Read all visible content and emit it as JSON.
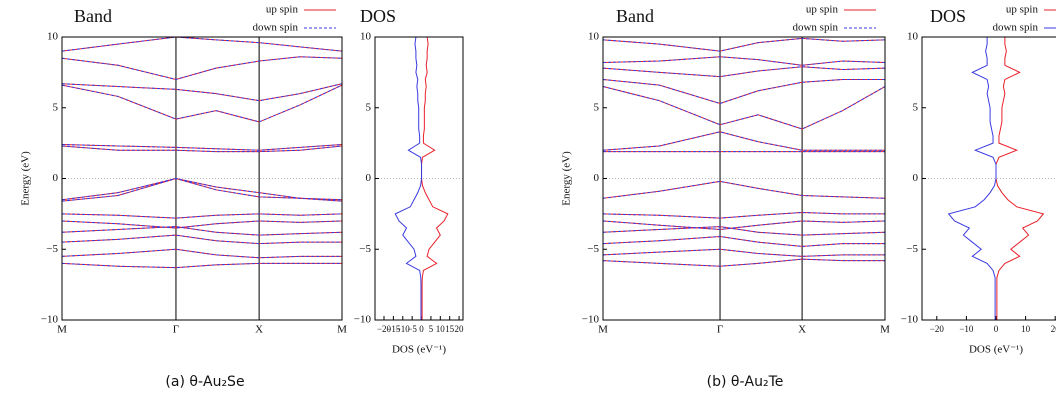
{
  "chart_data": [
    {
      "type": "band",
      "title": "Band",
      "ylabel": "Energy (eV)",
      "legend": true,
      "x": [
        0,
        0.2,
        0.407,
        0.55,
        0.704,
        0.85,
        1
      ],
      "xlim": [
        0,
        1
      ],
      "xticks": [
        {
          "value": 0,
          "label": "M"
        },
        {
          "value": 0.407,
          "label": "Γ"
        },
        {
          "value": 0.704,
          "label": "X"
        },
        {
          "value": 1,
          "label": "M"
        }
      ],
      "ylim": [
        -10,
        10
      ],
      "yticks": [
        {
          "value": -10,
          "label": "−10"
        },
        {
          "value": -5,
          "label": "−5"
        },
        0,
        5,
        10
      ],
      "series": [
        {
          "name": "up spin",
          "color": "#e8202a",
          "dashed": false,
          "lines": [
            [
              9.0,
              9.5,
              10,
              9.8,
              9.6,
              9.3,
              9.0
            ],
            [
              8.5,
              8.0,
              7.0,
              7.8,
              8.3,
              8.6,
              8.5
            ],
            [
              6.7,
              6.5,
              6.3,
              6.0,
              5.5,
              6.0,
              6.7
            ],
            [
              6.6,
              5.8,
              4.2,
              4.8,
              4.0,
              5.2,
              6.6
            ],
            [
              2.4,
              2.3,
              2.2,
              2.1,
              2.0,
              2.2,
              2.4
            ],
            [
              2.3,
              2.0,
              2.0,
              1.9,
              1.9,
              2.0,
              2.3
            ],
            [
              -1.5,
              -1.0,
              0,
              -0.8,
              -1.3,
              -1.4,
              -1.5
            ],
            [
              -1.6,
              -1.2,
              0,
              -0.6,
              -1.0,
              -1.4,
              -1.6
            ],
            [
              -2.5,
              -2.6,
              -2.8,
              -2.6,
              -2.5,
              -2.6,
              -2.5
            ],
            [
              -3.0,
              -3.2,
              -3.5,
              -3.2,
              -3.0,
              -3.1,
              -3.0
            ],
            [
              -3.8,
              -3.6,
              -3.4,
              -3.8,
              -4.0,
              -3.9,
              -3.8
            ],
            [
              -4.5,
              -4.3,
              -4.0,
              -4.4,
              -4.6,
              -4.5,
              -4.5
            ],
            [
              -5.5,
              -5.3,
              -5.0,
              -5.4,
              -5.6,
              -5.5,
              -5.5
            ],
            [
              -6.0,
              -6.2,
              -6.3,
              -6.1,
              -6.0,
              -6.0,
              -6.0
            ]
          ]
        },
        {
          "name": "down spin",
          "color": "#3a3ae0",
          "dashed": true,
          "lines": [
            [
              9.0,
              9.5,
              10,
              9.8,
              9.6,
              9.3,
              9.0
            ],
            [
              8.5,
              8.0,
              7.0,
              7.8,
              8.3,
              8.6,
              8.5
            ],
            [
              6.7,
              6.5,
              6.3,
              6.0,
              5.5,
              6.0,
              6.7
            ],
            [
              6.6,
              5.8,
              4.2,
              4.8,
              4.0,
              5.2,
              6.6
            ],
            [
              2.4,
              2.3,
              2.2,
              2.1,
              2.0,
              2.2,
              2.4
            ],
            [
              2.3,
              2.0,
              2.0,
              1.9,
              1.9,
              2.0,
              2.3
            ],
            [
              -1.5,
              -1.0,
              0,
              -0.8,
              -1.3,
              -1.4,
              -1.5
            ],
            [
              -1.6,
              -1.2,
              0,
              -0.6,
              -1.0,
              -1.4,
              -1.6
            ],
            [
              -2.5,
              -2.6,
              -2.8,
              -2.6,
              -2.5,
              -2.6,
              -2.5
            ],
            [
              -3.0,
              -3.2,
              -3.5,
              -3.2,
              -3.0,
              -3.1,
              -3.0
            ],
            [
              -3.8,
              -3.6,
              -3.4,
              -3.8,
              -4.0,
              -3.9,
              -3.8
            ],
            [
              -4.5,
              -4.3,
              -4.0,
              -4.4,
              -4.6,
              -4.5,
              -4.5
            ],
            [
              -5.5,
              -5.3,
              -5.0,
              -5.4,
              -5.6,
              -5.5,
              -5.5
            ],
            [
              -6.0,
              -6.2,
              -6.3,
              -6.1,
              -6.0,
              -6.0,
              -6.0
            ]
          ]
        }
      ]
    },
    {
      "type": "dos",
      "title": "DOS",
      "xlabel": "DOS (eV⁻¹)",
      "legend": false,
      "energies": [
        -10,
        -9.5,
        -9,
        -8.5,
        -8,
        -7.5,
        -7,
        -6.5,
        -6,
        -5.5,
        -5,
        -4.5,
        -4,
        -3.5,
        -3,
        -2.5,
        -2,
        -1.5,
        -1,
        -0.5,
        0,
        0.5,
        1,
        1.5,
        2,
        2.5,
        3,
        3.5,
        4,
        4.5,
        5,
        5.5,
        6,
        6.5,
        7,
        7.5,
        8,
        8.5,
        9,
        9.5,
        10
      ],
      "xlim": [
        -24.8,
        22.1
      ],
      "xticks": [
        {
          "value": -20,
          "label": "−20"
        },
        {
          "value": -15,
          "label": "−15"
        },
        {
          "value": -10,
          "label": "−10"
        },
        {
          "value": -5,
          "label": "−5"
        },
        0,
        5,
        10,
        15,
        20
      ],
      "ylim": [
        -10,
        10
      ],
      "yticks": [
        {
          "value": -10,
          "label": "−10"
        },
        {
          "value": -5,
          "label": "−5"
        },
        0,
        5,
        10
      ],
      "series": [
        {
          "name": "up spin",
          "color": "#e8202a",
          "values": [
            0.3,
            0.3,
            0.3,
            0.3,
            0.3,
            0.3,
            0.4,
            1,
            8,
            3,
            4,
            7,
            10,
            8,
            12,
            14,
            6,
            4,
            2,
            0.5,
            0,
            0,
            0,
            0.5,
            7,
            1,
            1,
            1.5,
            1.5,
            1.5,
            1.5,
            2,
            2,
            2.5,
            2,
            3,
            2.5,
            3,
            3,
            3.5,
            3
          ]
        },
        {
          "name": "down spin",
          "color": "#3a3ae0",
          "values": [
            -0.3,
            -0.3,
            -0.3,
            -0.3,
            -0.3,
            -0.3,
            -0.4,
            -1,
            -8,
            -3,
            -4,
            -7,
            -10,
            -8,
            -12,
            -14,
            -6,
            -4,
            -2,
            -0.5,
            0,
            0,
            0,
            -0.5,
            -7,
            -1,
            -1,
            -1.5,
            -1.5,
            -1.5,
            -1.5,
            -2,
            -2,
            -2.5,
            -2,
            -3,
            -2.5,
            -3,
            -3,
            -3.5,
            -3
          ]
        }
      ]
    },
    {
      "type": "band",
      "title": "Band",
      "ylabel": "Energy (eV)",
      "legend": true,
      "x": [
        0,
        0.2,
        0.415,
        0.55,
        0.706,
        0.85,
        1
      ],
      "xlim": [
        0,
        1
      ],
      "xticks": [
        {
          "value": 0,
          "label": "M"
        },
        {
          "value": 0.415,
          "label": "Γ"
        },
        {
          "value": 0.706,
          "label": "X"
        },
        {
          "value": 1,
          "label": "M"
        }
      ],
      "ylim": [
        -10,
        10
      ],
      "yticks": [
        {
          "value": -10,
          "label": "−10"
        },
        {
          "value": -5,
          "label": "−5"
        },
        0,
        5,
        10
      ],
      "series": [
        {
          "name": "up spin",
          "color": "#e8202a",
          "dashed": false,
          "lines": [
            [
              9.8,
              9.5,
              9.0,
              9.6,
              9.9,
              9.7,
              9.8
            ],
            [
              8.2,
              8.3,
              8.6,
              8.4,
              8.0,
              8.3,
              8.2
            ],
            [
              7.8,
              7.5,
              7.2,
              7.6,
              7.9,
              7.7,
              7.8
            ],
            [
              7.0,
              6.6,
              5.3,
              6.2,
              6.8,
              7.0,
              7.0
            ],
            [
              6.5,
              5.5,
              3.8,
              4.5,
              3.5,
              4.8,
              6.5
            ],
            [
              2.0,
              2.3,
              3.3,
              2.6,
              2.0,
              2.0,
              2.0
            ],
            [
              1.9,
              1.9,
              1.9,
              1.9,
              1.9,
              1.9,
              1.9
            ],
            [
              -1.4,
              -0.9,
              -0.2,
              -0.7,
              -1.2,
              -1.3,
              -1.4
            ],
            [
              -2.5,
              -2.6,
              -2.8,
              -2.6,
              -2.4,
              -2.5,
              -2.5
            ],
            [
              -3.0,
              -3.3,
              -3.6,
              -3.3,
              -3.0,
              -3.1,
              -3.0
            ],
            [
              -3.8,
              -3.6,
              -3.4,
              -3.8,
              -4.0,
              -3.9,
              -3.8
            ],
            [
              -4.6,
              -4.4,
              -4.1,
              -4.5,
              -4.8,
              -4.6,
              -4.6
            ],
            [
              -5.4,
              -5.2,
              -5.0,
              -5.3,
              -5.5,
              -5.4,
              -5.4
            ],
            [
              -5.8,
              -6.0,
              -6.2,
              -6.0,
              -5.7,
              -5.8,
              -5.8
            ]
          ]
        },
        {
          "name": "down spin",
          "color": "#3a3ae0",
          "dashed": true,
          "lines": [
            [
              9.8,
              9.5,
              9.0,
              9.6,
              9.9,
              9.7,
              9.8
            ],
            [
              8.2,
              8.3,
              8.6,
              8.4,
              8.0,
              8.3,
              8.2
            ],
            [
              7.8,
              7.5,
              7.2,
              7.6,
              7.9,
              7.7,
              7.8
            ],
            [
              7.0,
              6.6,
              5.3,
              6.2,
              6.8,
              7.0,
              7.0
            ],
            [
              6.5,
              5.5,
              3.8,
              4.5,
              3.5,
              4.8,
              6.5
            ],
            [
              2.0,
              2.3,
              3.3,
              2.6,
              2.0,
              2.0,
              2.0
            ],
            [
              1.9,
              1.9,
              1.9,
              1.9,
              1.9,
              1.9,
              1.9
            ],
            [
              -1.4,
              -0.9,
              -0.2,
              -0.7,
              -1.2,
              -1.3,
              -1.4
            ],
            [
              -2.5,
              -2.6,
              -2.8,
              -2.6,
              -2.4,
              -2.5,
              -2.5
            ],
            [
              -3.0,
              -3.3,
              -3.6,
              -3.3,
              -3.0,
              -3.1,
              -3.0
            ],
            [
              -3.8,
              -3.6,
              -3.4,
              -3.8,
              -4.0,
              -3.9,
              -3.8
            ],
            [
              -4.6,
              -4.4,
              -4.1,
              -4.5,
              -4.8,
              -4.6,
              -4.6
            ],
            [
              -5.4,
              -5.2,
              -5.0,
              -5.3,
              -5.5,
              -5.4,
              -5.4
            ],
            [
              -5.8,
              -6.0,
              -6.2,
              -6.0,
              -5.7,
              -5.8,
              -5.8
            ]
          ]
        }
      ]
    },
    {
      "type": "dos",
      "title": "DOS",
      "xlabel": "DOS (eV⁻¹)",
      "legend": true,
      "energies": [
        -10,
        -9.5,
        -9,
        -8.5,
        -8,
        -7.5,
        -7,
        -6.5,
        -6,
        -5.5,
        -5,
        -4.5,
        -4,
        -3.5,
        -3,
        -2.5,
        -2,
        -1.5,
        -1,
        -0.5,
        0,
        0.5,
        1,
        1.5,
        2,
        2.5,
        3,
        3.5,
        4,
        4.5,
        5,
        5.5,
        6,
        6.5,
        7,
        7.5,
        8,
        8.5,
        9,
        9.5,
        10
      ],
      "xlim": [
        -25,
        25
      ],
      "xticks": [
        {
          "value": -20,
          "label": "−20"
        },
        {
          "value": -10,
          "label": "−10"
        },
        0,
        10,
        20
      ],
      "ylim": [
        -10,
        10
      ],
      "yticks": [
        {
          "value": -10,
          "label": "−10"
        },
        {
          "value": -5,
          "label": "−5"
        },
        0,
        5,
        10
      ],
      "series": [
        {
          "name": "up spin",
          "color": "#e8202a",
          "values": [
            0.3,
            0.3,
            0.3,
            0.3,
            0.3,
            0.3,
            0.3,
            1,
            3,
            8,
            5,
            8,
            11,
            9,
            14,
            16,
            7,
            4,
            2,
            0.5,
            0,
            0,
            0,
            1,
            7,
            1,
            1,
            1.5,
            2,
            2,
            2,
            2.5,
            3,
            2.5,
            3,
            8,
            3,
            3,
            3.5,
            3,
            3
          ]
        },
        {
          "name": "down spin",
          "color": "#3a3ae0",
          "values": [
            -0.3,
            -0.3,
            -0.3,
            -0.3,
            -0.3,
            -0.3,
            -0.3,
            -1,
            -3,
            -8,
            -5,
            -8,
            -11,
            -9,
            -14,
            -16,
            -7,
            -4,
            -2,
            -0.5,
            0,
            0,
            0,
            -1,
            -7,
            -1,
            -1,
            -1.5,
            -2,
            -2,
            -2,
            -2.5,
            -3,
            -2.5,
            -3,
            -8,
            -3,
            -3,
            -3.5,
            -3,
            -3
          ]
        }
      ]
    }
  ],
  "captions": [
    "(a) θ-Au₂Se",
    "(b) θ-Au₂Te"
  ]
}
